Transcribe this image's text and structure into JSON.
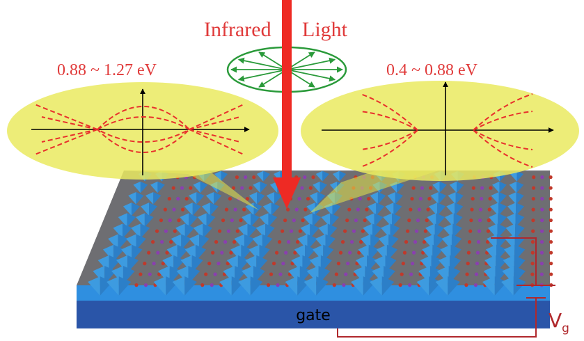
{
  "labels": {
    "light_left": "Infrared",
    "light_right": "Light",
    "band_left": "0.88 ~ 1.27 eV",
    "band_right": "0.4 ~ 0.88 eV",
    "gate": "gate",
    "voltage": "V",
    "voltage_sub": "g"
  }
}
